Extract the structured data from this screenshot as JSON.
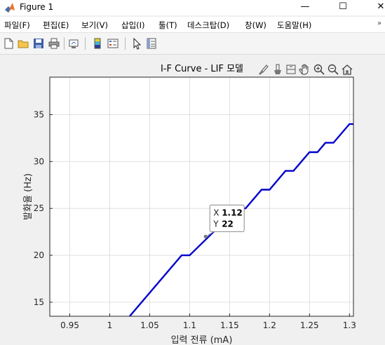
{
  "window": {
    "title": "Figure 1",
    "minimize_glyph": "—",
    "maximize_glyph": "☐",
    "close_glyph": "✕",
    "app_icon": "matlab-icon"
  },
  "menu": [
    {
      "label": "파일(F)"
    },
    {
      "label": "편집(E)"
    },
    {
      "label": "보기(V)"
    },
    {
      "label": "삽입(I)"
    },
    {
      "label": "툴(T)"
    },
    {
      "label": "데스크탑(D)"
    },
    {
      "label": "창(W)"
    },
    {
      "label": "도움말(H)"
    }
  ],
  "menu_overflow_glyph": "»",
  "toolbar_icons": [
    "new-figure-icon",
    "open-file-icon",
    "save-icon",
    "print-icon",
    "link-plot-icon",
    "colorbar-icon",
    "legend-icon",
    "edit-plot-icon",
    "property-inspector-icon"
  ],
  "axes_toolbar_icons": [
    "brush-icon",
    "data-tips-icon",
    "rotate-icon",
    "pan-icon",
    "zoom-in-icon",
    "zoom-out-icon",
    "home-icon"
  ],
  "colors": {
    "line": "#0000cc",
    "grid": "#e0e0e0",
    "axes_bg": "#ffffff",
    "figure_bg": "#f0f0f0"
  },
  "chart_data": {
    "type": "line",
    "title": "I-F Curve - LIF 모델",
    "xlabel": "입력 전류 (mA)",
    "ylabel": "발화율 (Hz)",
    "xlim": [
      0.925,
      1.305
    ],
    "ylim": [
      13.5,
      39
    ],
    "xticks": [
      0.95,
      1,
      1.05,
      1.1,
      1.15,
      1.2,
      1.25,
      1.3
    ],
    "xtick_labels": [
      "0.95",
      "1",
      "1.05",
      "1.1",
      "1.15",
      "1.2",
      "1.25",
      "1.3"
    ],
    "yticks": [
      15,
      20,
      25,
      30,
      35
    ],
    "ytick_labels": [
      "15",
      "20",
      "25",
      "30",
      "35"
    ],
    "grid": true,
    "series": [
      {
        "x": [
          1.025,
          1.09,
          1.1,
          1.16,
          1.17,
          1.19,
          1.2,
          1.22,
          1.23,
          1.25,
          1.26,
          1.27,
          1.28,
          1.3,
          1.31
        ],
        "y": [
          13.5,
          20,
          20,
          25,
          25,
          27,
          27,
          29,
          29,
          31,
          31,
          32,
          32,
          34,
          34
        ]
      }
    ],
    "datatip": {
      "x": 1.12,
      "y": 22,
      "x_label": "X",
      "y_label": "Y",
      "x_text": "1.12",
      "y_text": "22"
    }
  }
}
